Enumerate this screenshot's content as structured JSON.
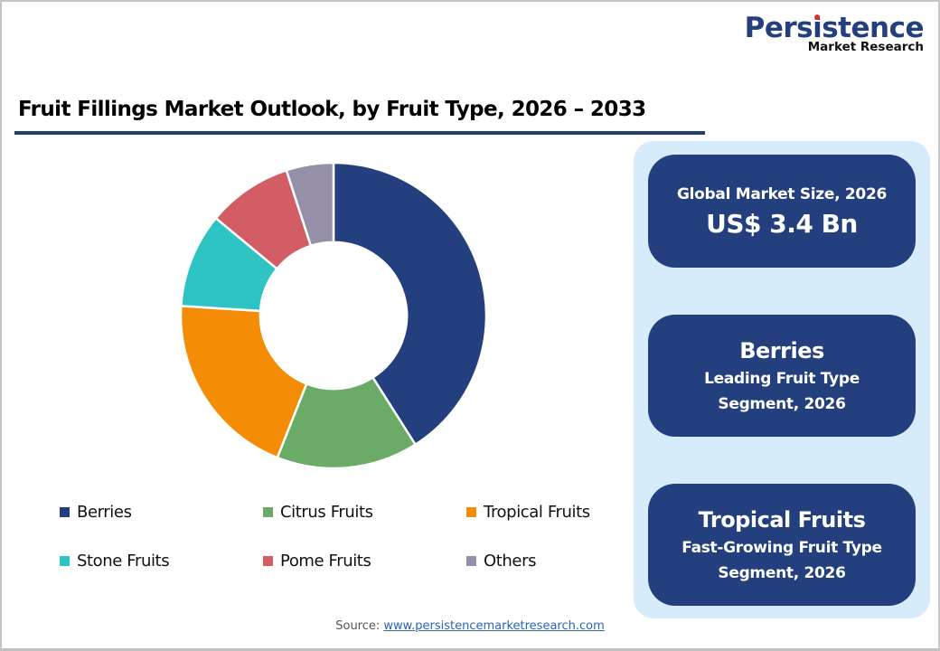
{
  "logo": {
    "main_prefix": "Pers",
    "main_dot_letter": "i",
    "main_suffix": "stence",
    "sub": "Market Research"
  },
  "title": "Fruit Fillings Market Outlook, by Fruit Type, 2026 – 2033",
  "colors": {
    "accent_dark": "#233f7e",
    "panel_bg": "#d7ecfb",
    "title_rule": "#233f6e"
  },
  "chart_data": {
    "type": "pie",
    "subtype": "donut",
    "title": "Fruit Fillings Market Outlook, by Fruit Type, 2026 – 2033",
    "categories": [
      "Berries",
      "Citrus Fruits",
      "Tropical Fruits",
      "Stone Fruits",
      "Pome Fruits",
      "Others"
    ],
    "values": [
      41,
      15,
      20,
      10,
      9,
      5
    ],
    "unit": "% share (estimated from slice angles, no data labels shown)",
    "colors": [
      "#233f7e",
      "#6aac67",
      "#f48c06",
      "#2ec4c4",
      "#d35d64",
      "#9590a8"
    ],
    "start_angle": "12 o'clock, clockwise",
    "inner_radius_ratio": 0.48,
    "legend_position": "bottom",
    "grid": false
  },
  "legend": [
    {
      "label": "Berries",
      "color": "#233f7e"
    },
    {
      "label": "Citrus Fruits",
      "color": "#6aac67"
    },
    {
      "label": "Tropical Fruits",
      "color": "#f48c06"
    },
    {
      "label": "Stone Fruits",
      "color": "#2ec4c4"
    },
    {
      "label": "Pome Fruits",
      "color": "#d35d64"
    },
    {
      "label": "Others",
      "color": "#9590a8"
    }
  ],
  "kpis": {
    "market_size": {
      "label": "Global Market Size, 2026",
      "value": "US$ 3.4 Bn"
    },
    "leading": {
      "head": "Berries",
      "line1": "Leading Fruit Type",
      "line2": "Segment, 2026"
    },
    "fastest": {
      "head": "Tropical Fruits",
      "line1": "Fast-Growing Fruit Type",
      "line2": "Segment, 2026"
    }
  },
  "source": {
    "label": "Source: ",
    "link_text": "www.persistencemarketresearch.com"
  }
}
